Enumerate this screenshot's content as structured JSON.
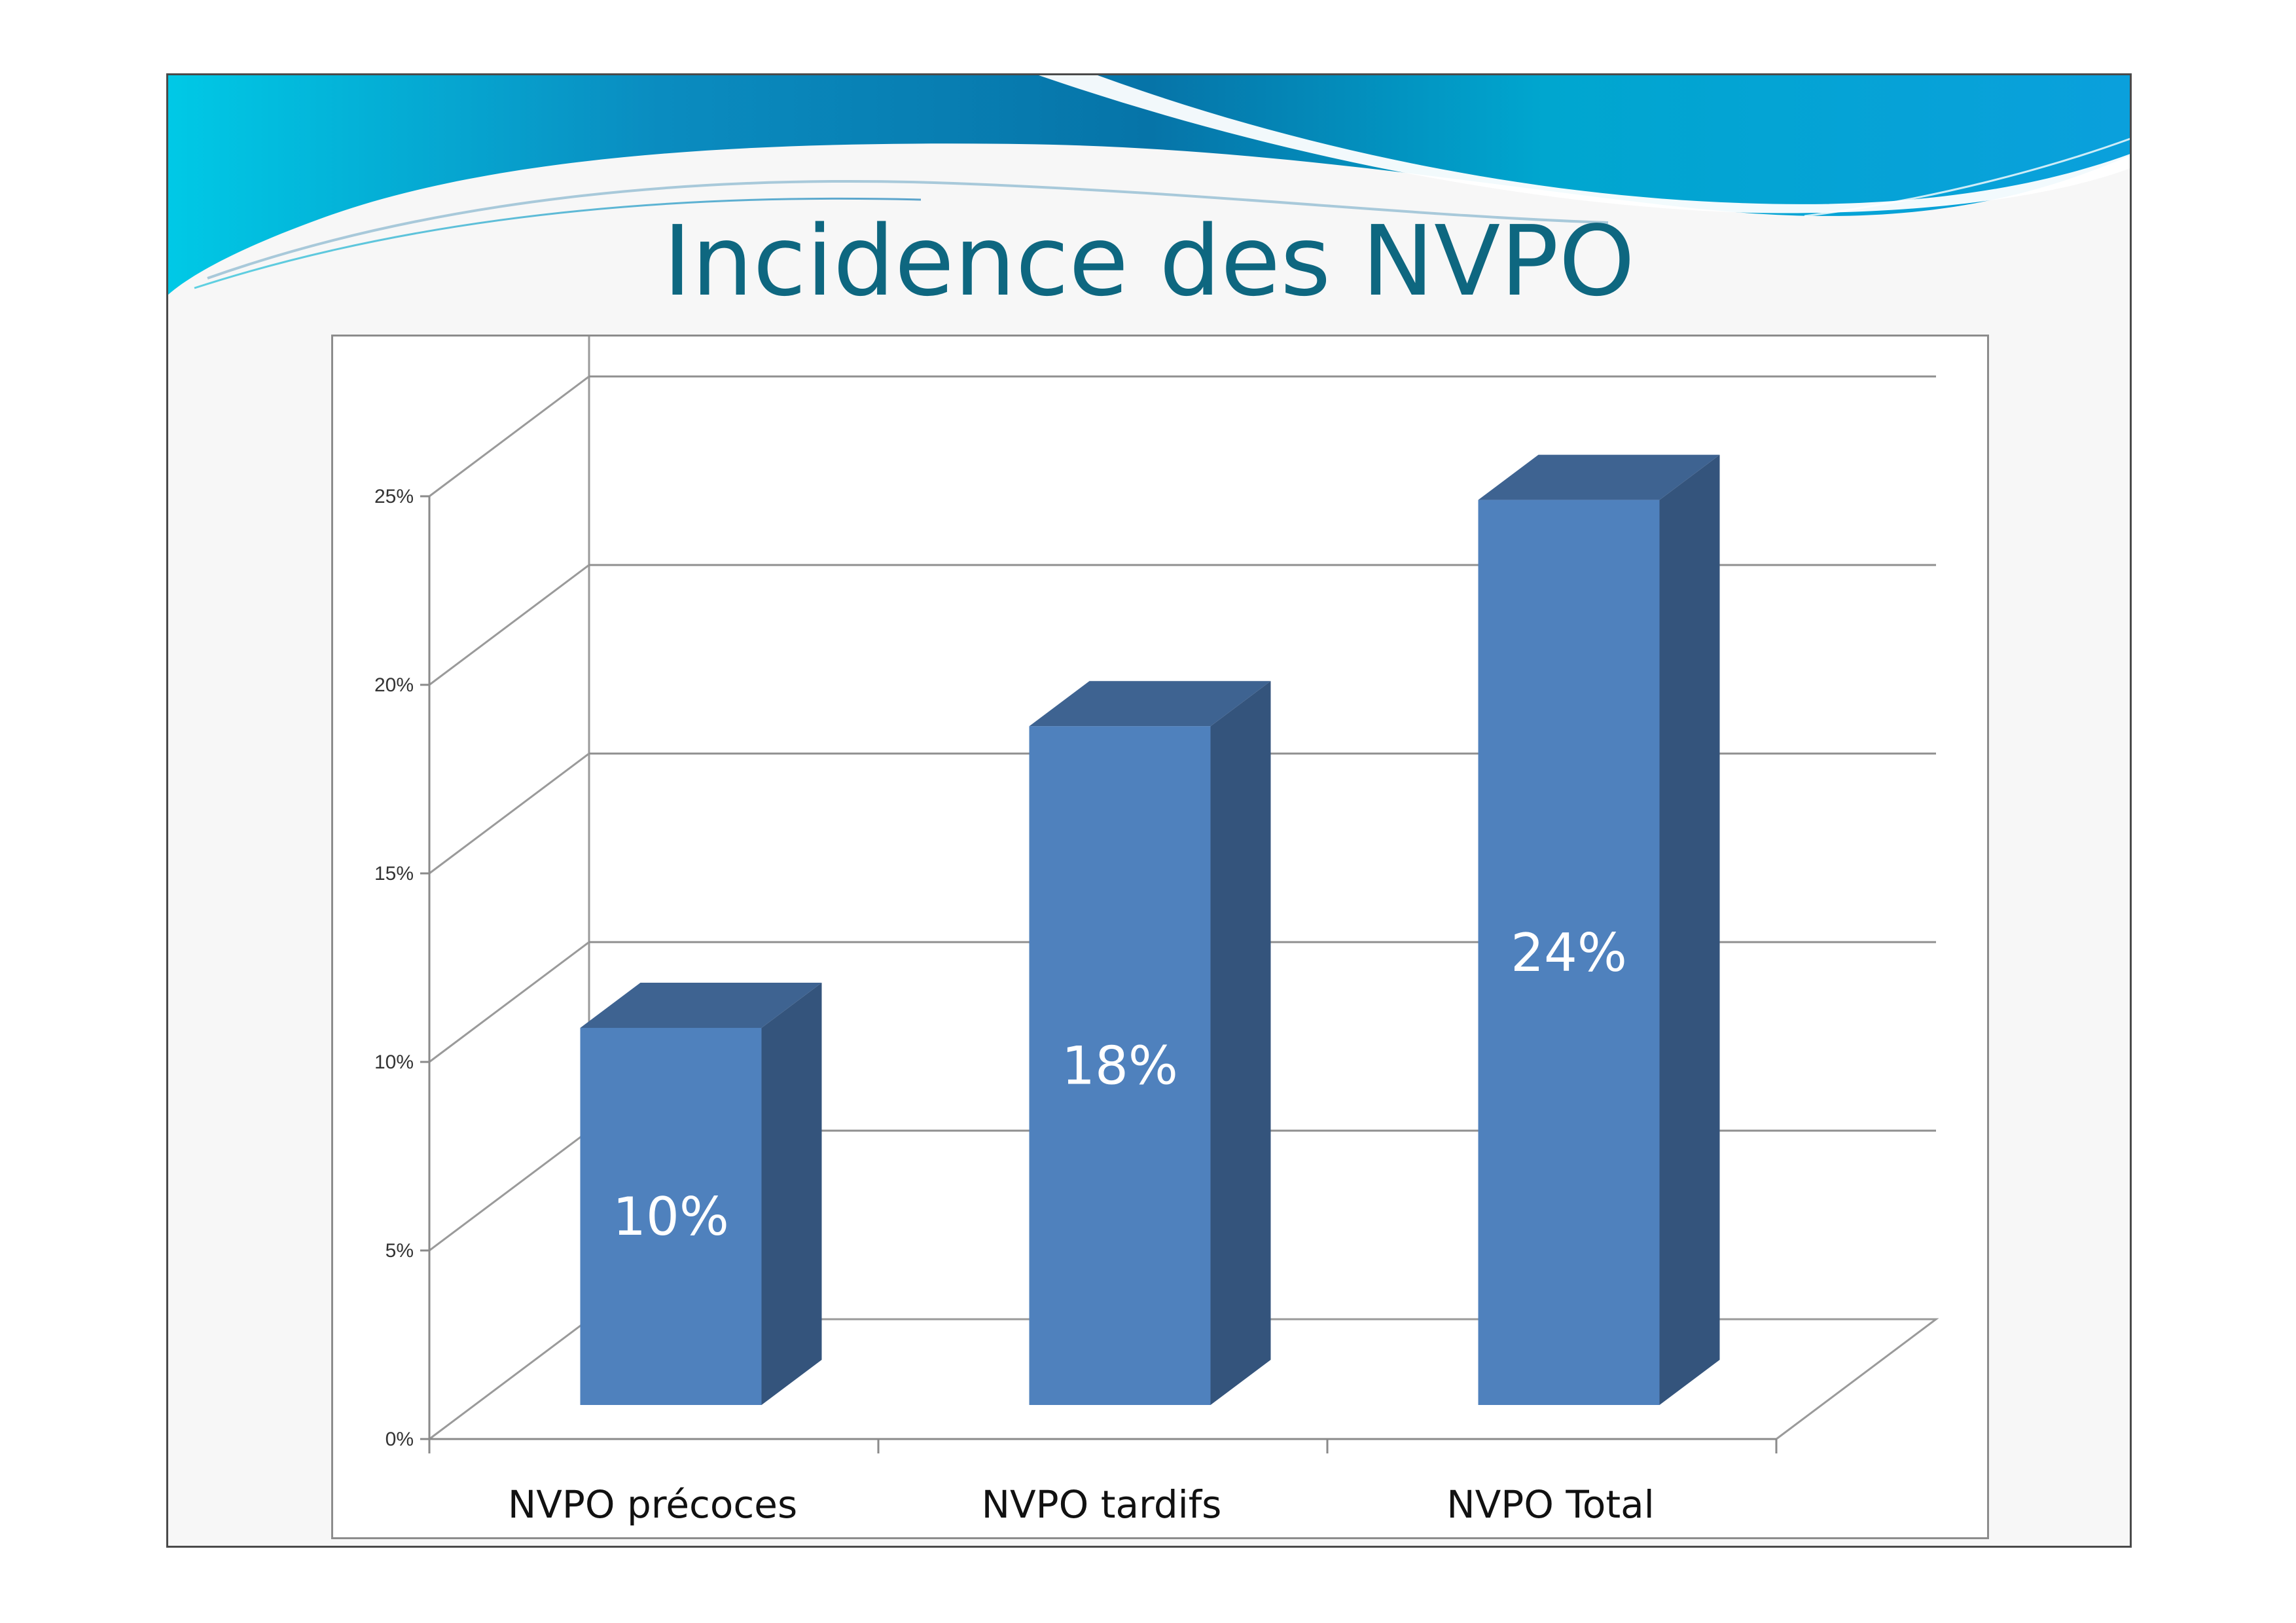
{
  "slide": {
    "title": "Incidence des NVPO"
  },
  "colors": {
    "title": "#0e6780",
    "bar_front": "#4f81bd",
    "bar_side": "#34547c",
    "bar_top": "#3e6391",
    "header_dark": "#0674a8",
    "header_light": "#00b3d6"
  },
  "chart_data": {
    "type": "bar",
    "style": "3d-column",
    "categories": [
      "NVPO précoces",
      "NVPO tardifs",
      "NVPO Total"
    ],
    "values": [
      10,
      18,
      24
    ],
    "data_labels": [
      "10%",
      "18%",
      "24%"
    ],
    "ylim": [
      0,
      25
    ],
    "yticks": [
      0,
      5,
      10,
      15,
      20,
      25
    ],
    "ytick_labels": [
      "0%",
      "5%",
      "10%",
      "15%",
      "20%",
      "25%"
    ],
    "grid": true,
    "legend": "none",
    "title": "",
    "xlabel": "",
    "ylabel": ""
  }
}
